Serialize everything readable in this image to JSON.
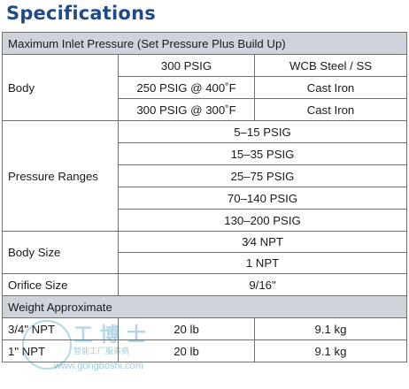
{
  "title": "Specifications",
  "table": {
    "header": "Maximum Inlet Pressure (Set Pressure Plus Build Up)",
    "body": {
      "label": "Body",
      "rows": [
        [
          "300 PSIG",
          "WCB Steel / SS"
        ],
        [
          "250 PSIG @ 400˚F",
          "Cast Iron"
        ],
        [
          "300 PSIG @ 300˚F",
          "Cast Iron"
        ]
      ]
    },
    "pressure_ranges": {
      "label": "Pressure Ranges",
      "values": [
        "5–15 PSIG",
        "15–35 PSIG",
        "25–75 PSIG",
        "70–140 PSIG",
        "130–200 PSIG"
      ]
    },
    "body_size": {
      "label": "Body Size",
      "values": [
        "3⁄4 NPT",
        "1 NPT"
      ]
    },
    "orifice_size": {
      "label": "Orifice Size",
      "value": "9/16\""
    },
    "weight": {
      "header": "Weight Approximate",
      "rows": [
        [
          "3/4\" NPT",
          "20 lb",
          "9.1 kg"
        ],
        [
          "1\" NPT",
          "20 lb",
          "9.1 kg"
        ]
      ]
    }
  },
  "watermark": {
    "chinese": "工博士",
    "subtitle": "智能工厂服务商",
    "url": "www.gongboshi.com"
  }
}
